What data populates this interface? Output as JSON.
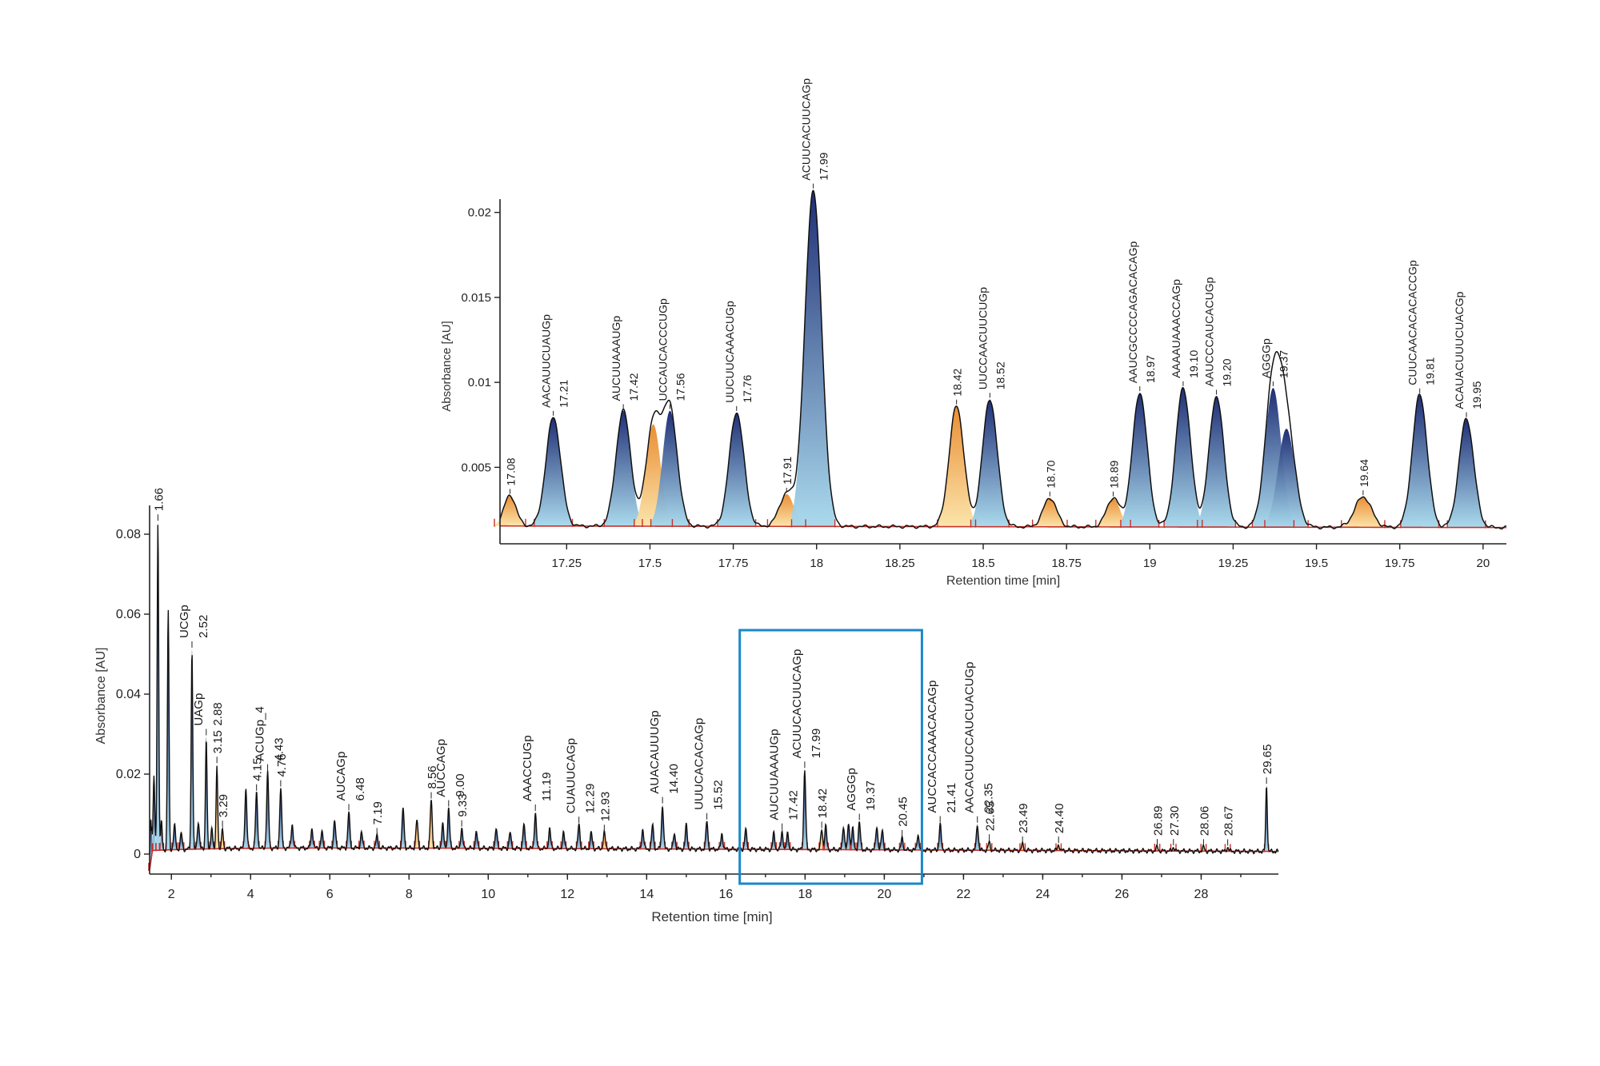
{
  "colors": {
    "peak_blue_top": "#14246e",
    "peak_blue_bottom": "#a6d8ec",
    "peak_orange_top": "#e8882a",
    "peak_orange_bottom": "#fbe3a6",
    "integration_red": "#c8302a",
    "trace_black": "#111111",
    "zoom_box": "#1a88c8"
  },
  "chart_data": [
    {
      "type": "line",
      "title": "",
      "xlabel": "Retention time [min]",
      "ylabel": "Absorbance [AU]",
      "xlim": [
        1.45,
        29.95
      ],
      "ylim": [
        -0.005,
        0.086
      ],
      "xticks": [
        2,
        4,
        6,
        8,
        10,
        12,
        14,
        16,
        18,
        20,
        22,
        24,
        26,
        28
      ],
      "yticks": [
        0,
        0.02,
        0.04,
        0.06,
        0.08
      ],
      "xtick_labels": [
        "2",
        "4",
        "6",
        "8",
        "10",
        "12",
        "14",
        "16",
        "18",
        "20",
        "22",
        "24",
        "26",
        "28"
      ],
      "ytick_labels": [
        "0",
        "0.02",
        "0.04",
        "0.06",
        "0.08"
      ],
      "zoom_window": [
        16.35,
        20.95
      ],
      "peaks": [
        {
          "rt": 1.48,
          "h": 0.013,
          "w": 0.02,
          "c": "blue"
        },
        {
          "rt": 1.56,
          "h": 0.0185,
          "w": 0.02,
          "c": "blue"
        },
        {
          "rt": 1.66,
          "h": 0.082,
          "w": 0.02,
          "c": "blue",
          "label": "1.66",
          "seq": ""
        },
        {
          "rt": 1.75,
          "h": 0.007,
          "w": 0.02,
          "c": "blue"
        },
        {
          "rt": 1.92,
          "h": 0.06,
          "w": 0.02,
          "c": "blue"
        },
        {
          "rt": 2.08,
          "h": 0.006,
          "w": 0.025,
          "c": "blue"
        },
        {
          "rt": 2.25,
          "h": 0.004,
          "w": 0.025,
          "c": "blue"
        },
        {
          "rt": 2.52,
          "h": 0.05,
          "w": 0.02,
          "c": "blue",
          "label": "2.52",
          "seq": "UCGp"
        },
        {
          "rt": 2.68,
          "h": 0.007,
          "w": 0.025,
          "c": "blue"
        },
        {
          "rt": 2.88,
          "h": 0.028,
          "w": 0.02,
          "c": "blue",
          "label": "2.88",
          "seq": "UAGp"
        },
        {
          "rt": 3.02,
          "h": 0.006,
          "w": 0.02,
          "c": "blue"
        },
        {
          "rt": 3.15,
          "h": 0.021,
          "w": 0.02,
          "c": "orange",
          "label": "3.15",
          "seq": ""
        },
        {
          "rt": 3.29,
          "h": 0.005,
          "w": 0.02,
          "c": "orange",
          "label": "3.29",
          "seq": ""
        },
        {
          "rt": 3.88,
          "h": 0.015,
          "w": 0.025,
          "c": "blue"
        },
        {
          "rt": 4.15,
          "h": 0.014,
          "w": 0.025,
          "c": "blue",
          "label": "4.15",
          "seq": ""
        },
        {
          "rt": 4.43,
          "h": 0.019,
          "w": 0.025,
          "c": "blue",
          "label": "4.43",
          "seq": "ACUGp_4"
        },
        {
          "rt": 4.76,
          "h": 0.015,
          "w": 0.025,
          "c": "blue",
          "label": "4.76",
          "seq": ""
        },
        {
          "rt": 5.05,
          "h": 0.006,
          "w": 0.025,
          "c": "blue"
        },
        {
          "rt": 5.55,
          "h": 0.005,
          "w": 0.025,
          "c": "blue"
        },
        {
          "rt": 5.8,
          "h": 0.004,
          "w": 0.025,
          "c": "blue"
        },
        {
          "rt": 6.12,
          "h": 0.007,
          "w": 0.025,
          "c": "blue"
        },
        {
          "rt": 6.48,
          "h": 0.009,
          "w": 0.025,
          "c": "blue",
          "label": "6.48",
          "seq": "AUCAGp"
        },
        {
          "rt": 6.8,
          "h": 0.004,
          "w": 0.025,
          "c": "blue"
        },
        {
          "rt": 7.19,
          "h": 0.003,
          "w": 0.025,
          "c": "blue",
          "label": "7.19",
          "seq": ""
        },
        {
          "rt": 7.85,
          "h": 0.01,
          "w": 0.025,
          "c": "blue"
        },
        {
          "rt": 8.2,
          "h": 0.007,
          "w": 0.025,
          "c": "orange"
        },
        {
          "rt": 8.56,
          "h": 0.012,
          "w": 0.025,
          "c": "orange",
          "label": "8.56",
          "seq": ""
        },
        {
          "rt": 8.85,
          "h": 0.006,
          "w": 0.025,
          "c": "blue"
        },
        {
          "rt": 9.0,
          "h": 0.01,
          "w": 0.025,
          "c": "blue",
          "label": "9.00",
          "seq": "AUCCAGp"
        },
        {
          "rt": 9.33,
          "h": 0.005,
          "w": 0.025,
          "c": "blue",
          "label": "9.33",
          "seq": ""
        },
        {
          "rt": 9.7,
          "h": 0.004,
          "w": 0.025,
          "c": "blue"
        },
        {
          "rt": 10.2,
          "h": 0.005,
          "w": 0.025,
          "c": "blue"
        },
        {
          "rt": 10.55,
          "h": 0.004,
          "w": 0.025,
          "c": "blue"
        },
        {
          "rt": 10.9,
          "h": 0.006,
          "w": 0.025,
          "c": "blue"
        },
        {
          "rt": 11.19,
          "h": 0.009,
          "w": 0.025,
          "c": "blue",
          "label": "11.19",
          "seq": "AAACCUGp"
        },
        {
          "rt": 11.55,
          "h": 0.005,
          "w": 0.025,
          "c": "blue"
        },
        {
          "rt": 11.9,
          "h": 0.004,
          "w": 0.025,
          "c": "blue"
        },
        {
          "rt": 12.29,
          "h": 0.006,
          "w": 0.025,
          "c": "blue",
          "label": "12.29",
          "seq": "CUAUUCAGp"
        },
        {
          "rt": 12.6,
          "h": 0.004,
          "w": 0.025,
          "c": "blue"
        },
        {
          "rt": 12.93,
          "h": 0.004,
          "w": 0.025,
          "c": "orange",
          "label": "12.93",
          "seq": ""
        },
        {
          "rt": 13.9,
          "h": 0.005,
          "w": 0.025,
          "c": "blue"
        },
        {
          "rt": 14.15,
          "h": 0.006,
          "w": 0.025,
          "c": "blue"
        },
        {
          "rt": 14.4,
          "h": 0.011,
          "w": 0.025,
          "c": "blue",
          "label": "14.40",
          "seq": "AUACAUUUGp"
        },
        {
          "rt": 14.7,
          "h": 0.004,
          "w": 0.025,
          "c": "blue"
        },
        {
          "rt": 15.0,
          "h": 0.006,
          "w": 0.025,
          "c": "blue"
        },
        {
          "rt": 15.52,
          "h": 0.007,
          "w": 0.025,
          "c": "blue",
          "label": "15.52",
          "seq": "UUUCACACAGp"
        },
        {
          "rt": 15.9,
          "h": 0.004,
          "w": 0.025,
          "c": "blue"
        },
        {
          "rt": 16.5,
          "h": 0.005,
          "w": 0.025,
          "c": "blue"
        },
        {
          "rt": 17.21,
          "h": 0.004,
          "w": 0.025,
          "c": "blue"
        },
        {
          "rt": 17.42,
          "h": 0.0045,
          "w": 0.025,
          "c": "blue",
          "label": "17.42",
          "seq": "AUCUUAAAUGp"
        },
        {
          "rt": 17.56,
          "h": 0.004,
          "w": 0.025,
          "c": "blue"
        },
        {
          "rt": 17.99,
          "h": 0.02,
          "w": 0.025,
          "c": "blue",
          "label": "17.99",
          "seq": "ACUUCACUUCAGp"
        },
        {
          "rt": 18.42,
          "h": 0.005,
          "w": 0.025,
          "c": "orange",
          "label": "18.42",
          "seq": ""
        },
        {
          "rt": 18.52,
          "h": 0.006,
          "w": 0.025,
          "c": "blue"
        },
        {
          "rt": 18.97,
          "h": 0.006,
          "w": 0.025,
          "c": "blue"
        },
        {
          "rt": 19.1,
          "h": 0.0065,
          "w": 0.025,
          "c": "blue"
        },
        {
          "rt": 19.2,
          "h": 0.0055,
          "w": 0.025,
          "c": "blue"
        },
        {
          "rt": 19.37,
          "h": 0.007,
          "w": 0.025,
          "c": "blue",
          "label": "19.37",
          "seq": "AGGGp"
        },
        {
          "rt": 19.81,
          "h": 0.006,
          "w": 0.025,
          "c": "blue"
        },
        {
          "rt": 19.95,
          "h": 0.005,
          "w": 0.025,
          "c": "blue"
        },
        {
          "rt": 20.45,
          "h": 0.003,
          "w": 0.025,
          "c": "blue",
          "label": "20.45",
          "seq": ""
        },
        {
          "rt": 20.85,
          "h": 0.004,
          "w": 0.025,
          "c": "blue"
        },
        {
          "rt": 21.41,
          "h": 0.0065,
          "w": 0.025,
          "c": "blue",
          "label": "21.41",
          "seq": "AUCCACCAAACACAGp"
        },
        {
          "rt": 22.35,
          "h": 0.0065,
          "w": 0.025,
          "c": "blue",
          "label": "22.35",
          "seq": "AACACUUCCAUCUACUGp"
        },
        {
          "rt": 22.65,
          "h": 0.002,
          "w": 0.025,
          "c": "orange",
          "label": "22.65",
          "seq": ""
        },
        {
          "rt": 23.49,
          "h": 0.0015,
          "w": 0.025,
          "c": "orange",
          "label": "23.49",
          "seq": ""
        },
        {
          "rt": 24.4,
          "h": 0.0015,
          "w": 0.025,
          "c": "orange",
          "label": "24.40",
          "seq": ""
        },
        {
          "rt": 26.89,
          "h": 0.001,
          "w": 0.025,
          "c": "orange",
          "label": "26.89",
          "seq": ""
        },
        {
          "rt": 27.3,
          "h": 0.001,
          "w": 0.025,
          "c": "orange",
          "label": "27.30",
          "seq": ""
        },
        {
          "rt": 28.06,
          "h": 0.001,
          "w": 0.025,
          "c": "orange",
          "label": "28.06",
          "seq": ""
        },
        {
          "rt": 28.67,
          "h": 0.001,
          "w": 0.025,
          "c": "orange",
          "label": "28.67",
          "seq": ""
        },
        {
          "rt": 29.65,
          "h": 0.0165,
          "w": 0.02,
          "c": "blue",
          "label": "29.65",
          "seq": ""
        }
      ]
    },
    {
      "type": "line",
      "title": "",
      "xlabel": "Retention time [min]",
      "ylabel": "Absorbance [AU]",
      "xlim": [
        17.05,
        20.07
      ],
      "ylim": [
        0.0005,
        0.0205
      ],
      "xticks": [
        17.25,
        17.5,
        17.75,
        18,
        18.25,
        18.5,
        18.75,
        19,
        19.25,
        19.5,
        19.75,
        20
      ],
      "yticks": [
        0.005,
        0.01,
        0.015,
        0.02
      ],
      "xtick_labels": [
        "17.25",
        "17.5",
        "17.75",
        "18",
        "18.25",
        "18.5",
        "18.75",
        "19",
        "19.25",
        "19.5",
        "19.75",
        "20"
      ],
      "ytick_labels": [
        "0.005",
        "0.01",
        "0.015",
        "0.02"
      ],
      "peaks": [
        {
          "rt": 17.08,
          "h": 0.0018,
          "w": 0.018,
          "c": "orange",
          "label": "17.08",
          "seq": ""
        },
        {
          "rt": 17.21,
          "h": 0.0064,
          "w": 0.022,
          "c": "blue",
          "label": "17.21",
          "seq": "AACAUUCUAUGp"
        },
        {
          "rt": 17.42,
          "h": 0.0068,
          "w": 0.022,
          "c": "blue",
          "label": "17.42",
          "seq": "AUCUUAAAUGp"
        },
        {
          "rt": 17.51,
          "h": 0.006,
          "w": 0.022,
          "c": "orange"
        },
        {
          "rt": 17.56,
          "h": 0.0068,
          "w": 0.022,
          "c": "blue",
          "label": "17.56",
          "seq": "UCCAUCACCCUGp"
        },
        {
          "rt": 17.76,
          "h": 0.0067,
          "w": 0.022,
          "c": "blue",
          "label": "17.76",
          "seq": "UUCUUCAAACUGp"
        },
        {
          "rt": 17.91,
          "h": 0.0019,
          "w": 0.022,
          "c": "orange",
          "label": "17.91",
          "seq": ""
        },
        {
          "rt": 17.99,
          "h": 0.0198,
          "w": 0.025,
          "c": "blue",
          "label": "17.99",
          "seq": "ACUUCACUUCAGp"
        },
        {
          "rt": 18.42,
          "h": 0.0071,
          "w": 0.022,
          "c": "orange",
          "label": "18.42",
          "seq": ""
        },
        {
          "rt": 18.52,
          "h": 0.0075,
          "w": 0.022,
          "c": "blue",
          "label": "18.52",
          "seq": "UUCCAACUUCUGp"
        },
        {
          "rt": 18.7,
          "h": 0.0017,
          "w": 0.02,
          "c": "orange",
          "label": "18.70",
          "seq": ""
        },
        {
          "rt": 18.89,
          "h": 0.0017,
          "w": 0.02,
          "c": "orange",
          "label": "18.89",
          "seq": ""
        },
        {
          "rt": 18.97,
          "h": 0.0079,
          "w": 0.022,
          "c": "blue",
          "label": "18.97",
          "seq": "AAUCGCCCCAGACACAGp"
        },
        {
          "rt": 19.1,
          "h": 0.0082,
          "w": 0.022,
          "c": "blue",
          "label": "19.10",
          "seq": "AAAAUAAACCAGp"
        },
        {
          "rt": 19.2,
          "h": 0.0077,
          "w": 0.022,
          "c": "blue",
          "label": "19.20",
          "seq": "AAUCCCAUCACUGp"
        },
        {
          "rt": 19.37,
          "h": 0.0082,
          "w": 0.024,
          "c": "blue",
          "label": "19.37",
          "seq": "AGGGp"
        },
        {
          "rt": 19.41,
          "h": 0.0058,
          "w": 0.025,
          "c": "blue"
        },
        {
          "rt": 19.64,
          "h": 0.0018,
          "w": 0.025,
          "c": "orange",
          "label": "19.64",
          "seq": ""
        },
        {
          "rt": 19.81,
          "h": 0.0078,
          "w": 0.022,
          "c": "blue",
          "label": "19.81",
          "seq": "CUUCAACACACACCGp"
        },
        {
          "rt": 19.95,
          "h": 0.0064,
          "w": 0.022,
          "c": "blue",
          "label": "19.95",
          "seq": "ACAUACUUUCUACGp"
        }
      ]
    }
  ]
}
